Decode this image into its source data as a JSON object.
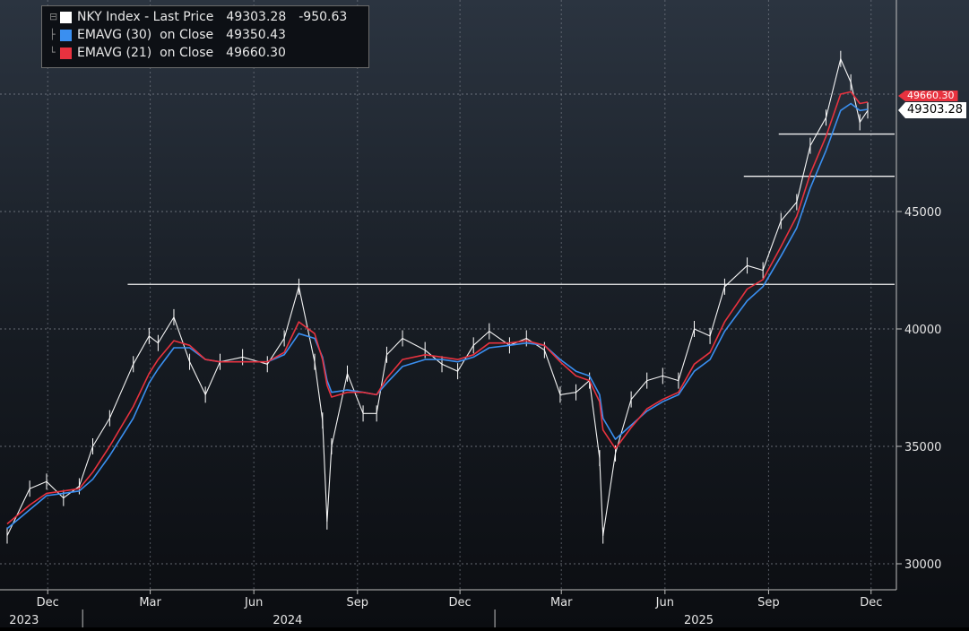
{
  "legend": {
    "series": [
      {
        "label": "NKY Index - Last Price",
        "value": "49303.28",
        "change": "-950.63",
        "color": "#ffffff"
      },
      {
        "label": "EMAVG (30)  on Close",
        "value": "49350.43",
        "change": "",
        "color": "#3a8ff0"
      },
      {
        "label": "EMAVG (21)  on Close",
        "value": "49660.30",
        "change": "",
        "color": "#e8323f"
      }
    ]
  },
  "flags": {
    "last_price": "49303.28",
    "ema21": "49660.30"
  },
  "chart_data": {
    "type": "line",
    "title": "",
    "xlabel": "",
    "ylabel": "",
    "ylim": [
      29000,
      52000
    ],
    "y_ticks": [
      30000,
      35000,
      40000,
      45000
    ],
    "x_ticks": [
      "Dec",
      "Mar",
      "Jun",
      "Sep",
      "Dec",
      "Mar",
      "Jun",
      "Sep",
      "Dec"
    ],
    "x_year_labels": [
      "2023",
      "2024",
      "2025"
    ],
    "grid": true,
    "legend_position": "top-left",
    "horizontal_levels": [
      41900,
      46500,
      48300
    ],
    "series": [
      {
        "name": "NKY Index - Last Price",
        "color": "#ffffff",
        "x": [
          "2023-10-26",
          "2023-11-15",
          "2023-11-30",
          "2023-12-15",
          "2023-12-29",
          "2024-01-10",
          "2024-01-25",
          "2024-02-15",
          "2024-02-29",
          "2024-03-08",
          "2024-03-22",
          "2024-04-05",
          "2024-04-19",
          "2024-05-02",
          "2024-05-22",
          "2024-06-13",
          "2024-06-28",
          "2024-07-11",
          "2024-07-25",
          "2024-08-01",
          "2024-08-05",
          "2024-08-09",
          "2024-08-23",
          "2024-09-06",
          "2024-09-18",
          "2024-09-27",
          "2024-10-11",
          "2024-10-31",
          "2024-11-15",
          "2024-11-29",
          "2024-12-13",
          "2024-12-27",
          "2025-01-14",
          "2025-01-29",
          "2025-02-14",
          "2025-02-28",
          "2025-03-14",
          "2025-03-26",
          "2025-04-04",
          "2025-04-07",
          "2025-04-18",
          "2025-05-02",
          "2025-05-16",
          "2025-05-30",
          "2025-06-13",
          "2025-06-27",
          "2025-07-11",
          "2025-07-24",
          "2025-08-13",
          "2025-08-27",
          "2025-09-12",
          "2025-09-26",
          "2025-10-08",
          "2025-10-22",
          "2025-11-04",
          "2025-11-13",
          "2025-11-21",
          "2025-11-28"
        ],
        "values": [
          31200,
          33200,
          33500,
          32800,
          33300,
          35000,
          36200,
          38500,
          39700,
          39400,
          40500,
          38600,
          37200,
          38600,
          38800,
          38500,
          39600,
          41800,
          38600,
          36100,
          31800,
          35000,
          38100,
          36400,
          36400,
          38900,
          39600,
          39100,
          38500,
          38200,
          39300,
          39900,
          39300,
          39600,
          39100,
          37200,
          37300,
          37800,
          34500,
          31200,
          34700,
          37000,
          37800,
          38000,
          37800,
          40000,
          39700,
          41800,
          42700,
          42500,
          44600,
          45400,
          47800,
          49000,
          51500,
          50500,
          48800,
          49303.28
        ]
      },
      {
        "name": "EMAVG (30)  on Close",
        "color": "#3a8ff0",
        "x": [
          "2023-10-26",
          "2023-11-15",
          "2023-11-30",
          "2023-12-15",
          "2023-12-29",
          "2024-01-10",
          "2024-01-25",
          "2024-02-15",
          "2024-02-29",
          "2024-03-08",
          "2024-03-22",
          "2024-04-05",
          "2024-04-19",
          "2024-05-02",
          "2024-05-22",
          "2024-06-13",
          "2024-06-28",
          "2024-07-11",
          "2024-07-25",
          "2024-08-01",
          "2024-08-05",
          "2024-08-09",
          "2024-08-23",
          "2024-09-06",
          "2024-09-18",
          "2024-09-27",
          "2024-10-11",
          "2024-10-31",
          "2024-11-15",
          "2024-11-29",
          "2024-12-13",
          "2024-12-27",
          "2025-01-14",
          "2025-01-29",
          "2025-02-14",
          "2025-02-28",
          "2025-03-14",
          "2025-03-26",
          "2025-04-04",
          "2025-04-07",
          "2025-04-18",
          "2025-05-02",
          "2025-05-16",
          "2025-05-30",
          "2025-06-13",
          "2025-06-27",
          "2025-07-11",
          "2025-07-24",
          "2025-08-13",
          "2025-08-27",
          "2025-09-12",
          "2025-09-26",
          "2025-10-08",
          "2025-10-22",
          "2025-11-04",
          "2025-11-13",
          "2025-11-21",
          "2025-11-28"
        ],
        "values": [
          31500,
          32300,
          32900,
          33000,
          33100,
          33600,
          34600,
          36200,
          37700,
          38300,
          39200,
          39200,
          38700,
          38600,
          38600,
          38600,
          38900,
          39800,
          39600,
          38800,
          37800,
          37300,
          37400,
          37300,
          37200,
          37700,
          38400,
          38700,
          38700,
          38600,
          38800,
          39200,
          39300,
          39400,
          39300,
          38700,
          38200,
          38000,
          37200,
          36200,
          35300,
          35900,
          36500,
          36900,
          37200,
          38200,
          38700,
          39900,
          41200,
          41800,
          43100,
          44300,
          46000,
          47600,
          49300,
          49600,
          49300,
          49350.43
        ]
      },
      {
        "name": "EMAVG (21)  on Close",
        "color": "#e8323f",
        "x": [
          "2023-10-26",
          "2023-11-15",
          "2023-11-30",
          "2023-12-15",
          "2023-12-29",
          "2024-01-10",
          "2024-01-25",
          "2024-02-15",
          "2024-02-29",
          "2024-03-08",
          "2024-03-22",
          "2024-04-05",
          "2024-04-19",
          "2024-05-02",
          "2024-05-22",
          "2024-06-13",
          "2024-06-28",
          "2024-07-11",
          "2024-07-25",
          "2024-08-01",
          "2024-08-05",
          "2024-08-09",
          "2024-08-23",
          "2024-09-06",
          "2024-09-18",
          "2024-09-27",
          "2024-10-11",
          "2024-10-31",
          "2024-11-15",
          "2024-11-29",
          "2024-12-13",
          "2024-12-27",
          "2025-01-14",
          "2025-01-29",
          "2025-02-14",
          "2025-02-28",
          "2025-03-14",
          "2025-03-26",
          "2025-04-04",
          "2025-04-07",
          "2025-04-18",
          "2025-05-02",
          "2025-05-16",
          "2025-05-30",
          "2025-06-13",
          "2025-06-27",
          "2025-07-11",
          "2025-07-24",
          "2025-08-13",
          "2025-08-27",
          "2025-09-12",
          "2025-09-26",
          "2025-10-08",
          "2025-10-22",
          "2025-11-04",
          "2025-11-13",
          "2025-11-21",
          "2025-11-28"
        ],
        "values": [
          31700,
          32500,
          33000,
          33100,
          33200,
          33900,
          35000,
          36700,
          38100,
          38700,
          39500,
          39300,
          38700,
          38600,
          38600,
          38600,
          39000,
          40300,
          39800,
          38700,
          37600,
          37100,
          37300,
          37300,
          37200,
          37900,
          38700,
          38900,
          38800,
          38700,
          38900,
          39400,
          39400,
          39500,
          39300,
          38600,
          38000,
          37800,
          36900,
          35700,
          34900,
          35800,
          36600,
          37000,
          37300,
          38500,
          39000,
          40300,
          41700,
          42100,
          43500,
          44800,
          46600,
          48200,
          50000,
          50100,
          49600,
          49660.3
        ]
      }
    ]
  }
}
